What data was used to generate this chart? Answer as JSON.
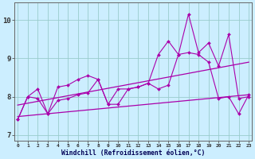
{
  "xlabel": "Windchill (Refroidissement éolien,°C)",
  "bg_color": "#cceeff",
  "line_color": "#aa00aa",
  "grid_color": "#99cccc",
  "yticks": [
    7,
    8,
    9,
    10
  ],
  "xticks": [
    0,
    1,
    2,
    3,
    4,
    5,
    6,
    7,
    8,
    9,
    10,
    11,
    12,
    13,
    14,
    15,
    16,
    17,
    18,
    19,
    20,
    21,
    22,
    23
  ],
  "xlim": [
    -0.3,
    23.3
  ],
  "ylim": [
    6.85,
    10.45
  ],
  "x": [
    0,
    1,
    2,
    3,
    4,
    5,
    6,
    7,
    8,
    9,
    10,
    11,
    12,
    13,
    14,
    15,
    16,
    17,
    18,
    19,
    20,
    21,
    22,
    23
  ],
  "y_upper": [
    7.4,
    8.0,
    8.2,
    7.55,
    8.25,
    8.3,
    8.45,
    8.55,
    8.45,
    7.8,
    8.2,
    8.2,
    8.25,
    8.35,
    9.1,
    9.45,
    9.1,
    10.15,
    9.15,
    9.4,
    8.8,
    9.62,
    7.95,
    8.0
  ],
  "y_lower": [
    7.4,
    8.0,
    7.95,
    7.55,
    7.9,
    7.95,
    8.05,
    8.1,
    8.45,
    7.8,
    7.8,
    8.2,
    8.25,
    8.35,
    8.2,
    8.3,
    9.1,
    9.15,
    9.1,
    8.9,
    7.95,
    8.0,
    7.55,
    8.05
  ],
  "reg1": [
    7.78,
    8.9
  ],
  "reg2": [
    7.48,
    8.05
  ]
}
